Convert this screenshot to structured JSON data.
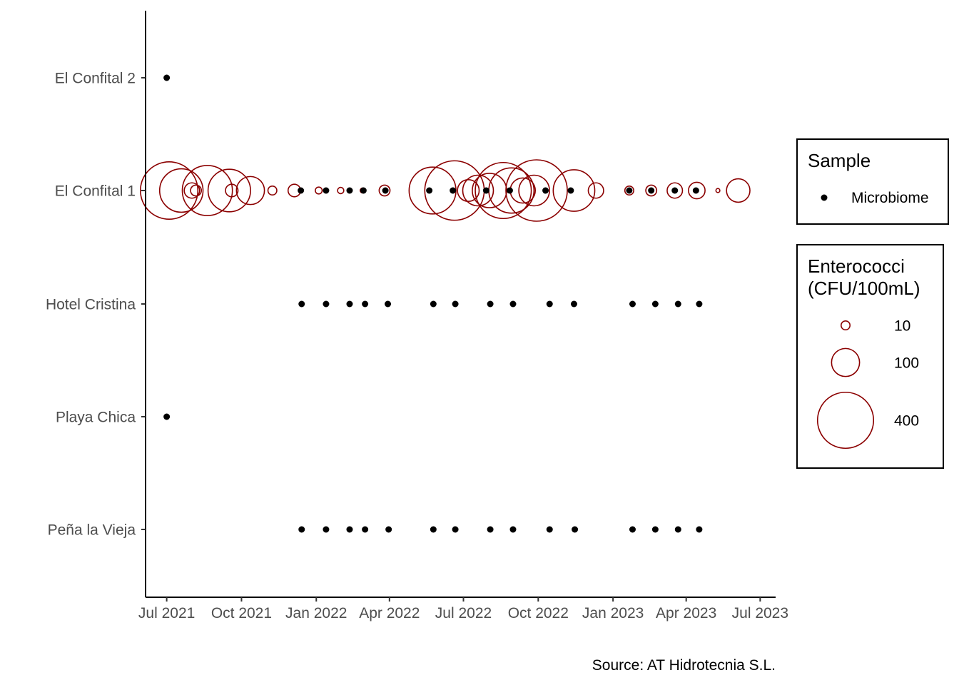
{
  "chart_data": {
    "type": "scatter",
    "title": "",
    "xlabel": "",
    "ylabel": "",
    "caption": "Source: AT Hidrotecnia S.L.",
    "grid": false,
    "xlim": [
      "2021-06-05",
      "2023-07-20"
    ],
    "x_ticks": [
      {
        "date": "2021-07-01",
        "label": "Jul 2021"
      },
      {
        "date": "2021-10-01",
        "label": "Oct 2021"
      },
      {
        "date": "2022-01-01",
        "label": "Jan 2022"
      },
      {
        "date": "2022-04-01",
        "label": "Apr 2022"
      },
      {
        "date": "2022-07-01",
        "label": "Jul 2022"
      },
      {
        "date": "2022-10-01",
        "label": "Oct 2022"
      },
      {
        "date": "2023-01-01",
        "label": "Jan 2023"
      },
      {
        "date": "2023-04-01",
        "label": "Apr 2023"
      },
      {
        "date": "2023-07-01",
        "label": "Jul 2023"
      }
    ],
    "categories": [
      "El Confital 2",
      "El Confital 1",
      "Hotel Cristina",
      "Playa Chica",
      "Peña la Vieja"
    ],
    "colors": {
      "enterococci": "#8b0000",
      "microbiome": "#000000"
    },
    "legends": {
      "sample": {
        "title": "Sample",
        "position": "right",
        "items": [
          "Microbiome"
        ]
      },
      "enterococci": {
        "title_lines": [
          "Enterococci",
          "(CFU/100mL)"
        ],
        "position": "right",
        "items": [
          {
            "label": "10",
            "value": 10
          },
          {
            "label": "100",
            "value": 100
          },
          {
            "label": "400",
            "value": 400
          }
        ]
      }
    },
    "enterococci": {
      "site": "El Confital 1",
      "points": [
        {
          "date": "2021-07-04",
          "value": 420
        },
        {
          "date": "2021-07-19",
          "value": 240
        },
        {
          "date": "2021-08-01",
          "value": 30
        },
        {
          "date": "2021-08-06",
          "value": 15
        },
        {
          "date": "2021-08-20",
          "value": 320
        },
        {
          "date": "2021-09-16",
          "value": 230
        },
        {
          "date": "2021-09-19",
          "value": 20
        },
        {
          "date": "2021-10-12",
          "value": 100
        },
        {
          "date": "2021-11-08",
          "value": 10
        },
        {
          "date": "2021-12-05",
          "value": 20
        },
        {
          "date": "2022-01-04",
          "value": 6
        },
        {
          "date": "2022-01-31",
          "value": 5
        },
        {
          "date": "2022-02-27",
          "value": 3
        },
        {
          "date": "2022-03-26",
          "value": 15
        },
        {
          "date": "2022-05-24",
          "value": 280
        },
        {
          "date": "2022-06-20",
          "value": 450
        },
        {
          "date": "2022-07-07",
          "value": 60
        },
        {
          "date": "2022-07-19",
          "value": 120
        },
        {
          "date": "2022-08-02",
          "value": 150
        },
        {
          "date": "2022-08-19",
          "value": 400
        },
        {
          "date": "2022-08-29",
          "value": 260
        },
        {
          "date": "2022-09-12",
          "value": 80
        },
        {
          "date": "2022-09-26",
          "value": 120
        },
        {
          "date": "2022-09-29",
          "value": 480
        },
        {
          "date": "2022-11-14",
          "value": 220
        },
        {
          "date": "2022-12-11",
          "value": 30
        },
        {
          "date": "2023-01-21",
          "value": 10
        },
        {
          "date": "2023-02-17",
          "value": 15
        },
        {
          "date": "2023-03-18",
          "value": 30
        },
        {
          "date": "2023-04-14",
          "value": 35
        },
        {
          "date": "2023-05-10",
          "value": 2
        },
        {
          "date": "2023-06-04",
          "value": 70
        }
      ]
    },
    "microbiome": {
      "points": [
        {
          "site": "El Confital 2",
          "date": "2021-07-01"
        },
        {
          "site": "El Confital 1",
          "date": "2021-12-13"
        },
        {
          "site": "El Confital 1",
          "date": "2022-01-13"
        },
        {
          "site": "El Confital 1",
          "date": "2022-02-11"
        },
        {
          "site": "El Confital 1",
          "date": "2022-02-28"
        },
        {
          "site": "El Confital 1",
          "date": "2022-03-27"
        },
        {
          "site": "El Confital 1",
          "date": "2022-05-20"
        },
        {
          "site": "El Confital 1",
          "date": "2022-06-18"
        },
        {
          "site": "El Confital 1",
          "date": "2022-07-29"
        },
        {
          "site": "El Confital 1",
          "date": "2022-08-27"
        },
        {
          "site": "El Confital 1",
          "date": "2022-10-10"
        },
        {
          "site": "El Confital 1",
          "date": "2022-11-10"
        },
        {
          "site": "El Confital 1",
          "date": "2023-01-21"
        },
        {
          "site": "El Confital 1",
          "date": "2023-02-17"
        },
        {
          "site": "El Confital 1",
          "date": "2023-03-18"
        },
        {
          "site": "El Confital 1",
          "date": "2023-04-13"
        },
        {
          "site": "Hotel Cristina",
          "date": "2021-12-14"
        },
        {
          "site": "Hotel Cristina",
          "date": "2022-01-13"
        },
        {
          "site": "Hotel Cristina",
          "date": "2022-02-11"
        },
        {
          "site": "Hotel Cristina",
          "date": "2022-03-02"
        },
        {
          "site": "Hotel Cristina",
          "date": "2022-03-30"
        },
        {
          "site": "Hotel Cristina",
          "date": "2022-05-25"
        },
        {
          "site": "Hotel Cristina",
          "date": "2022-06-21"
        },
        {
          "site": "Hotel Cristina",
          "date": "2022-08-03"
        },
        {
          "site": "Hotel Cristina",
          "date": "2022-08-31"
        },
        {
          "site": "Hotel Cristina",
          "date": "2022-10-15"
        },
        {
          "site": "Hotel Cristina",
          "date": "2022-11-14"
        },
        {
          "site": "Hotel Cristina",
          "date": "2023-01-25"
        },
        {
          "site": "Hotel Cristina",
          "date": "2023-02-22"
        },
        {
          "site": "Hotel Cristina",
          "date": "2023-03-22"
        },
        {
          "site": "Hotel Cristina",
          "date": "2023-04-17"
        },
        {
          "site": "Playa Chica",
          "date": "2021-07-01"
        },
        {
          "site": "Peña la Vieja",
          "date": "2021-12-14"
        },
        {
          "site": "Peña la Vieja",
          "date": "2022-01-13"
        },
        {
          "site": "Peña la Vieja",
          "date": "2022-02-11"
        },
        {
          "site": "Peña la Vieja",
          "date": "2022-03-02"
        },
        {
          "site": "Peña la Vieja",
          "date": "2022-03-31"
        },
        {
          "site": "Peña la Vieja",
          "date": "2022-05-25"
        },
        {
          "site": "Peña la Vieja",
          "date": "2022-06-21"
        },
        {
          "site": "Peña la Vieja",
          "date": "2022-08-03"
        },
        {
          "site": "Peña la Vieja",
          "date": "2022-08-31"
        },
        {
          "site": "Peña la Vieja",
          "date": "2022-10-15"
        },
        {
          "site": "Peña la Vieja",
          "date": "2022-11-15"
        },
        {
          "site": "Peña la Vieja",
          "date": "2023-01-25"
        },
        {
          "site": "Peña la Vieja",
          "date": "2023-02-22"
        },
        {
          "site": "Peña la Vieja",
          "date": "2023-03-22"
        },
        {
          "site": "Peña la Vieja",
          "date": "2023-04-17"
        }
      ]
    }
  }
}
